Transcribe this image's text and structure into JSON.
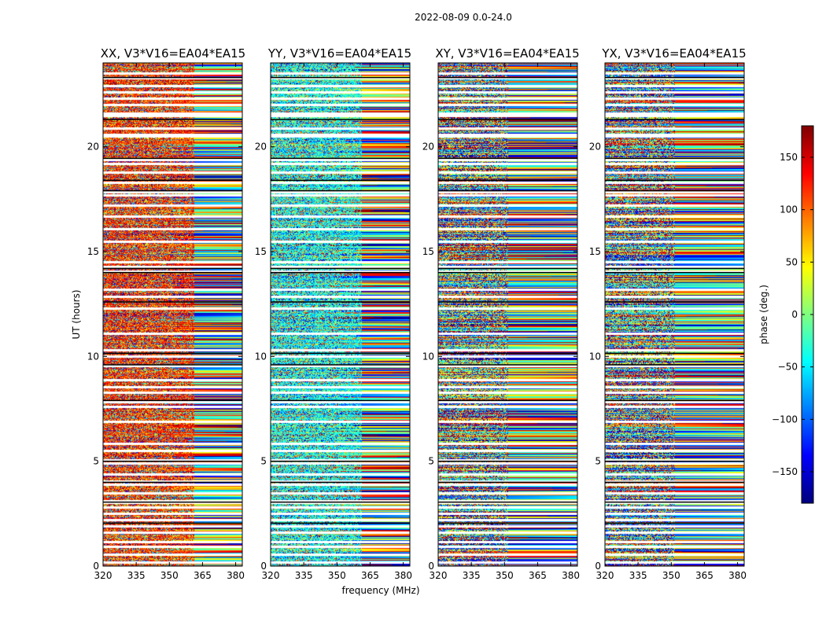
{
  "chart_data": {
    "type": "heatmap",
    "title": "2022-08-09 0.0-24.0",
    "xlabel": "frequency (MHz)",
    "ylabel": "UT (hours)",
    "xlim": [
      320,
      383
    ],
    "ylim": [
      0,
      24
    ],
    "xticks": [
      "320",
      "335",
      "350",
      "365",
      "380"
    ],
    "xtick_values": [
      320,
      335,
      350,
      365,
      380
    ],
    "yticks": [
      "0",
      "5",
      "10",
      "15",
      "20"
    ],
    "ytick_values": [
      0,
      5,
      10,
      15,
      20
    ],
    "panels": [
      {
        "title": "XX, V3*V16=EA04*EA15",
        "base_phase": 120
      },
      {
        "title": "YY, V3*V16=EA04*EA15",
        "base_phase": -40
      },
      {
        "title": "XY, V3*V16=EA04*EA15",
        "base_phase": 0
      },
      {
        "title": "YX, V3*V16=EA04*EA15",
        "base_phase": 0
      }
    ],
    "colorbar": {
      "label": "phase (deg.)",
      "range": [
        -180,
        180
      ],
      "colormap": "jet",
      "ticks": [
        "150",
        "100",
        "50",
        "0",
        "−50",
        "−100",
        "−150"
      ],
      "tick_values": [
        150,
        100,
        50,
        0,
        -50,
        -100,
        -150
      ]
    },
    "gap_hours": [
      0.2,
      0.55,
      0.95,
      1.15,
      1.6,
      1.9,
      2.2,
      2.5,
      2.8,
      3.05,
      3.1,
      3.5,
      3.9,
      4.05,
      4.4,
      4.9,
      5.05,
      5.5,
      5.85,
      6.9,
      7.6,
      7.85,
      8.3,
      8.55,
      8.9,
      9.55,
      10.0,
      10.3,
      11.1,
      12.3,
      12.85,
      13.2,
      14.05,
      14.3,
      14.5,
      15.5,
      16.1,
      16.7,
      17.2,
      17.7,
      17.85,
      18.3,
      18.8,
      19.2,
      19.4,
      20.5,
      20.6,
      20.9,
      21.5,
      21.6,
      22.0,
      22.3,
      22.6,
      22.9,
      23.3,
      23.5
    ],
    "dark_lines_hours": [
      2.05,
      3.05,
      4.0,
      5.0,
      7.9,
      9.6,
      10.15,
      12.6,
      14.0,
      14.2,
      17.9,
      18.4,
      19.45,
      21.3,
      23.3
    ]
  }
}
